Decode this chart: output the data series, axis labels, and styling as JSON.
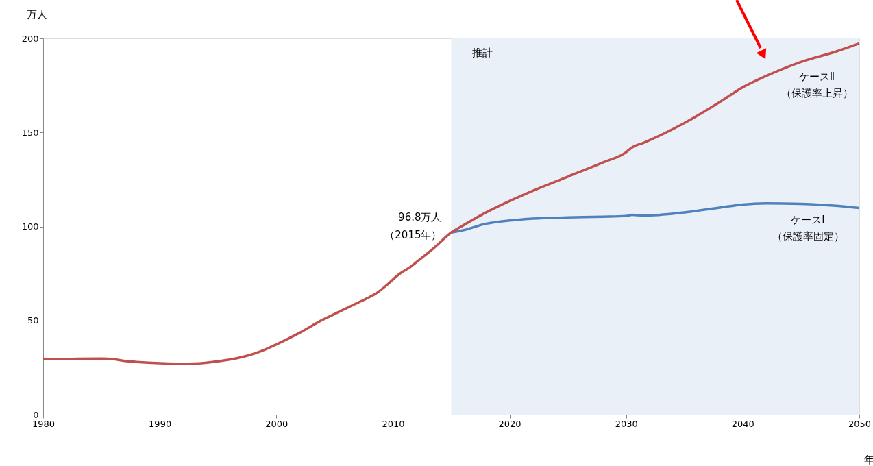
{
  "chart_data": {
    "type": "line",
    "ylabel": "万人",
    "xlabel": "年",
    "xlim": [
      1980,
      2050
    ],
    "xticks": [
      1980,
      1990,
      2000,
      2010,
      2020,
      2030,
      2040,
      2050
    ],
    "ylim": [
      0,
      200
    ],
    "yticks": [
      0,
      50,
      100,
      150,
      200
    ],
    "grid": false,
    "marker": "none",
    "line_style": "solid",
    "series": [
      {
        "name": "ケースⅠ（保護率固定）",
        "color": "#4f81bd",
        "x": [
          2015,
          2016,
          2018,
          2020,
          2022,
          2025,
          2028,
          2030,
          2030.5,
          2031.5,
          2035,
          2038,
          2040,
          2042,
          2045,
          2048,
          2050
        ],
        "values": [
          96.8,
          98,
          101.5,
          103.2,
          104.2,
          104.8,
          105.2,
          105.6,
          106.2,
          105.8,
          107.5,
          110,
          111.7,
          112.3,
          112,
          111,
          109.8
        ]
      },
      {
        "name": "ケースⅡ（保護率上昇）",
        "color": "#c0504d",
        "x": [
          1980,
          1981,
          1983,
          1985,
          1986,
          1987,
          1988,
          1990,
          1992,
          1993,
          1995,
          1997,
          1999,
          2000,
          2002,
          2004,
          2005,
          2006,
          2007,
          2008,
          2008.5,
          2009.5,
          2010.5,
          2011.5,
          2012.5,
          2013.5,
          2015,
          2016,
          2018,
          2020,
          2022,
          2025,
          2028,
          2030,
          2030.5,
          2031.5,
          2035,
          2038,
          2040,
          2042,
          2045,
          2048,
          2050
        ],
        "values": [
          29.7,
          29.5,
          29.7,
          29.8,
          29.5,
          28.5,
          28,
          27.3,
          27,
          27.1,
          28.3,
          30.5,
          34.5,
          37.3,
          43.5,
          50.5,
          53.5,
          56.5,
          59.5,
          62.5,
          64.2,
          69,
          74.5,
          78.5,
          83.5,
          88.5,
          96.8,
          100.5,
          107.5,
          113.5,
          119,
          126.5,
          134,
          139.5,
          142,
          144.5,
          155,
          166,
          174,
          180,
          187.5,
          193,
          197.3
        ]
      }
    ],
    "bands": [
      {
        "axis": "x",
        "from": 2015,
        "to": 2050,
        "label": "推計",
        "color": "#eaf0f7"
      }
    ],
    "annotations": [
      {
        "text": "96.8万人（2015年）",
        "x": 2015,
        "y": 96.8
      }
    ]
  }
}
